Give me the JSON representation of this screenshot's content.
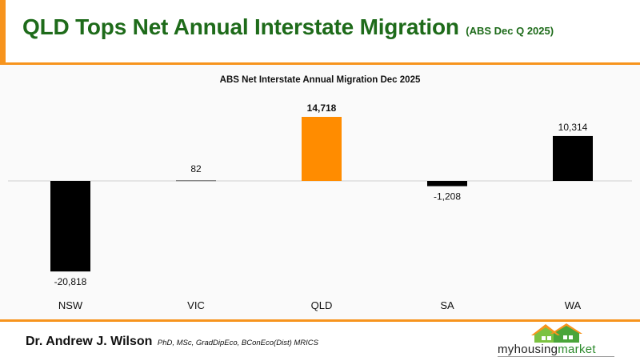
{
  "header": {
    "title": "QLD Tops Net Annual Interstate Migration",
    "subtitle": "(ABS Dec Q 2025)"
  },
  "colors": {
    "accent": "#f7941d",
    "title_green": "#1e6b1a",
    "bar_default": "#000000",
    "bar_highlight": "#ff8c00"
  },
  "chart_data": {
    "type": "bar",
    "title": "ABS Net Interstate Annual Migration Dec 2025",
    "categories": [
      "NSW",
      "VIC",
      "QLD",
      "SA",
      "WA"
    ],
    "values": [
      -20818,
      82,
      14718,
      -1208,
      10314
    ],
    "data_labels": [
      "-20,818",
      "82",
      "14,718",
      "-1,208",
      "10,314"
    ],
    "highlight": "QLD",
    "xlabel": "",
    "ylabel": "",
    "ylim": [
      -20818,
      14718
    ],
    "grid": false,
    "legend": "none"
  },
  "footer": {
    "author_name": "Dr. Andrew J. Wilson",
    "author_credentials": "PhD, MSc, GradDipEco, BConEco(Dist) MRICS",
    "logo_text_a": "myhousing",
    "logo_text_b": "market",
    "logo_icon": "house-icon"
  }
}
